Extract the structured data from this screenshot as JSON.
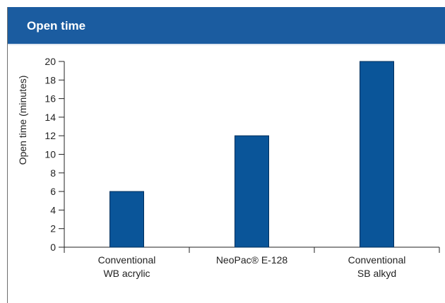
{
  "header": {
    "title": "Open time"
  },
  "chart_data": {
    "type": "bar",
    "title": "Open time",
    "ylabel": "Open time (minutes)",
    "xlabel": "",
    "ylim": [
      0,
      20
    ],
    "yticks": [
      0,
      2,
      4,
      6,
      8,
      10,
      12,
      14,
      16,
      18,
      20
    ],
    "ytick_labels": [
      "0",
      "2",
      "4",
      "6",
      "8",
      "10",
      "12",
      "14",
      "16",
      "18",
      "20"
    ],
    "categories": [
      [
        "Conventional",
        "WB acrylic"
      ],
      [
        "NeoPac® E-128"
      ],
      [
        "Conventional",
        "SB alkyd"
      ]
    ],
    "values": [
      6,
      12,
      20
    ],
    "grid": false,
    "bar_color": "#0a5599",
    "bar_edge_color": "#002f5c",
    "axis_color": "#222222"
  }
}
